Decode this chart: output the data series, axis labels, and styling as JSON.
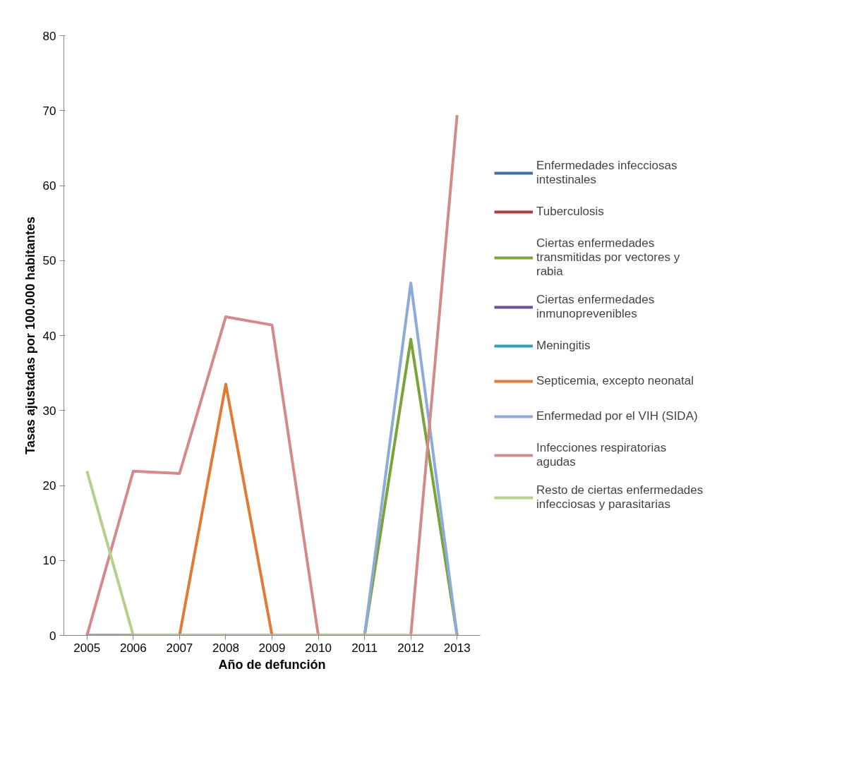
{
  "chart_data": {
    "type": "line",
    "xlabel": "Año de defunción",
    "ylabel": "Tasas ajustadas por 100.000 habitantes",
    "categories": [
      "2005",
      "2006",
      "2007",
      "2008",
      "2009",
      "2010",
      "2011",
      "2012",
      "2013"
    ],
    "ylim": [
      0,
      80
    ],
    "yticks": [
      0,
      10,
      20,
      30,
      40,
      50,
      60,
      70,
      80
    ],
    "grid": false,
    "legend": "right",
    "marker": "none",
    "line_style": "solid",
    "series": [
      {
        "name": "Enfermedades infecciosas intestinales",
        "color": "#3e6eb0",
        "values": [
          null,
          null,
          null,
          null,
          null,
          null,
          null,
          null,
          null
        ]
      },
      {
        "name": "Tuberculosis",
        "color": "#b03a3a",
        "values": [
          null,
          null,
          null,
          null,
          null,
          null,
          null,
          null,
          null
        ]
      },
      {
        "name": "Ciertas enfermedades transmitidas por vectores y rabia",
        "color": "#7aa33a",
        "values": [
          0,
          0,
          0,
          0,
          0,
          0,
          0,
          39.5,
          0
        ]
      },
      {
        "name": "Ciertas enfermedades inmunoprevenibles",
        "color": "#6f4f96",
        "values": [
          null,
          null,
          null,
          null,
          null,
          null,
          null,
          null,
          null
        ]
      },
      {
        "name": "Meningitis",
        "color": "#2ea0b8",
        "values": [
          null,
          null,
          null,
          null,
          null,
          null,
          null,
          null,
          null
        ]
      },
      {
        "name": "Septicemia, excepto neonatal",
        "color": "#e07b35",
        "values": [
          0,
          0,
          0,
          33.5,
          0,
          0,
          0,
          null,
          null
        ]
      },
      {
        "name": "Enfermedad por el VIH (SIDA)",
        "color": "#8eaad8",
        "values": [
          0,
          0,
          0,
          0,
          0,
          0,
          0,
          47,
          0
        ]
      },
      {
        "name": "Infecciones respiratorias agudas",
        "color": "#d48a8a",
        "values": [
          0,
          21.9,
          21.6,
          42.5,
          41.4,
          0,
          0,
          0,
          69.4
        ]
      },
      {
        "name": "Resto de ciertas enfermedades infecciosas y parasitarias",
        "color": "#b5cf8d",
        "values": [
          21.9,
          0,
          0,
          0,
          0,
          0,
          0,
          0,
          0
        ]
      }
    ]
  }
}
